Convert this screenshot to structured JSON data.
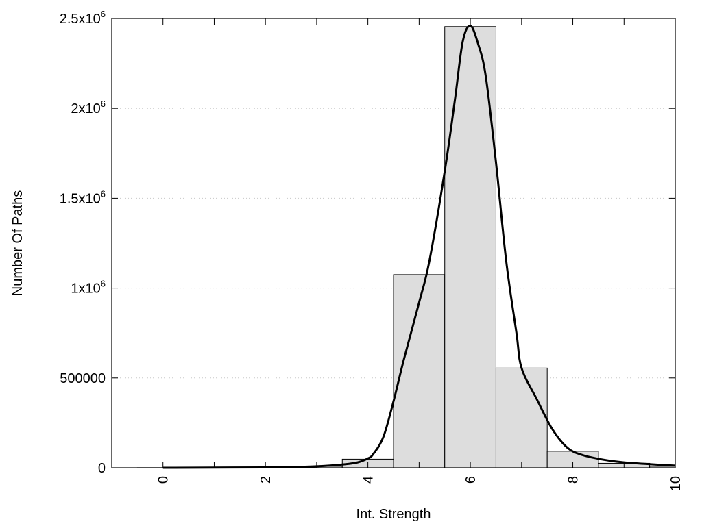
{
  "chart_data": {
    "type": "bar",
    "xlabel": "Int. Strength",
    "ylabel": "Number Of Paths",
    "xlim": [
      -1,
      10
    ],
    "ylim": [
      0,
      2500000
    ],
    "grid": true,
    "x_ticks": [
      0,
      2,
      4,
      6,
      8,
      10
    ],
    "y_ticks": [
      {
        "value": 0,
        "base": "0",
        "exp": ""
      },
      {
        "value": 500000,
        "base": "500000",
        "exp": ""
      },
      {
        "value": 1000000,
        "base": "1x10",
        "exp": "6"
      },
      {
        "value": 1500000,
        "base": "1.5x10",
        "exp": "6"
      },
      {
        "value": 2000000,
        "base": "2x10",
        "exp": "6"
      },
      {
        "value": 2500000,
        "base": "2.5x10",
        "exp": "6"
      }
    ],
    "bars": [
      {
        "x": 0,
        "value": 400
      },
      {
        "x": 1,
        "value": 800
      },
      {
        "x": 2,
        "value": 2000
      },
      {
        "x": 3,
        "value": 8000
      },
      {
        "x": 4,
        "value": 48000
      },
      {
        "x": 5,
        "value": 1075000
      },
      {
        "x": 6,
        "value": 2455000
      },
      {
        "x": 7,
        "value": 555000
      },
      {
        "x": 8,
        "value": 92000
      },
      {
        "x": 9,
        "value": 25000
      },
      {
        "x": 10,
        "value": 8000
      }
    ],
    "bar_width": 1,
    "bar_color": "#dddddd",
    "curve": [
      [
        0,
        0
      ],
      [
        1,
        1000
      ],
      [
        2,
        2000
      ],
      [
        2.5,
        4000
      ],
      [
        3,
        8000
      ],
      [
        3.5,
        18000
      ],
      [
        3.8,
        30000
      ],
      [
        4,
        52000
      ],
      [
        4.1,
        75000
      ],
      [
        4.3,
        170000
      ],
      [
        4.5,
        370000
      ],
      [
        4.7,
        600000
      ],
      [
        5,
        920000
      ],
      [
        5.2,
        1150000
      ],
      [
        5.5,
        1650000
      ],
      [
        5.7,
        2050000
      ],
      [
        5.85,
        2370000
      ],
      [
        6,
        2460000
      ],
      [
        6.15,
        2360000
      ],
      [
        6.3,
        2180000
      ],
      [
        6.5,
        1700000
      ],
      [
        6.7,
        1150000
      ],
      [
        6.9,
        750000
      ],
      [
        7,
        555000
      ],
      [
        7.3,
        380000
      ],
      [
        7.6,
        215000
      ],
      [
        7.9,
        110000
      ],
      [
        8.2,
        70000
      ],
      [
        8.6,
        45000
      ],
      [
        9,
        30000
      ],
      [
        9.5,
        20000
      ],
      [
        10,
        12000
      ]
    ],
    "curve_color": "#000000"
  }
}
